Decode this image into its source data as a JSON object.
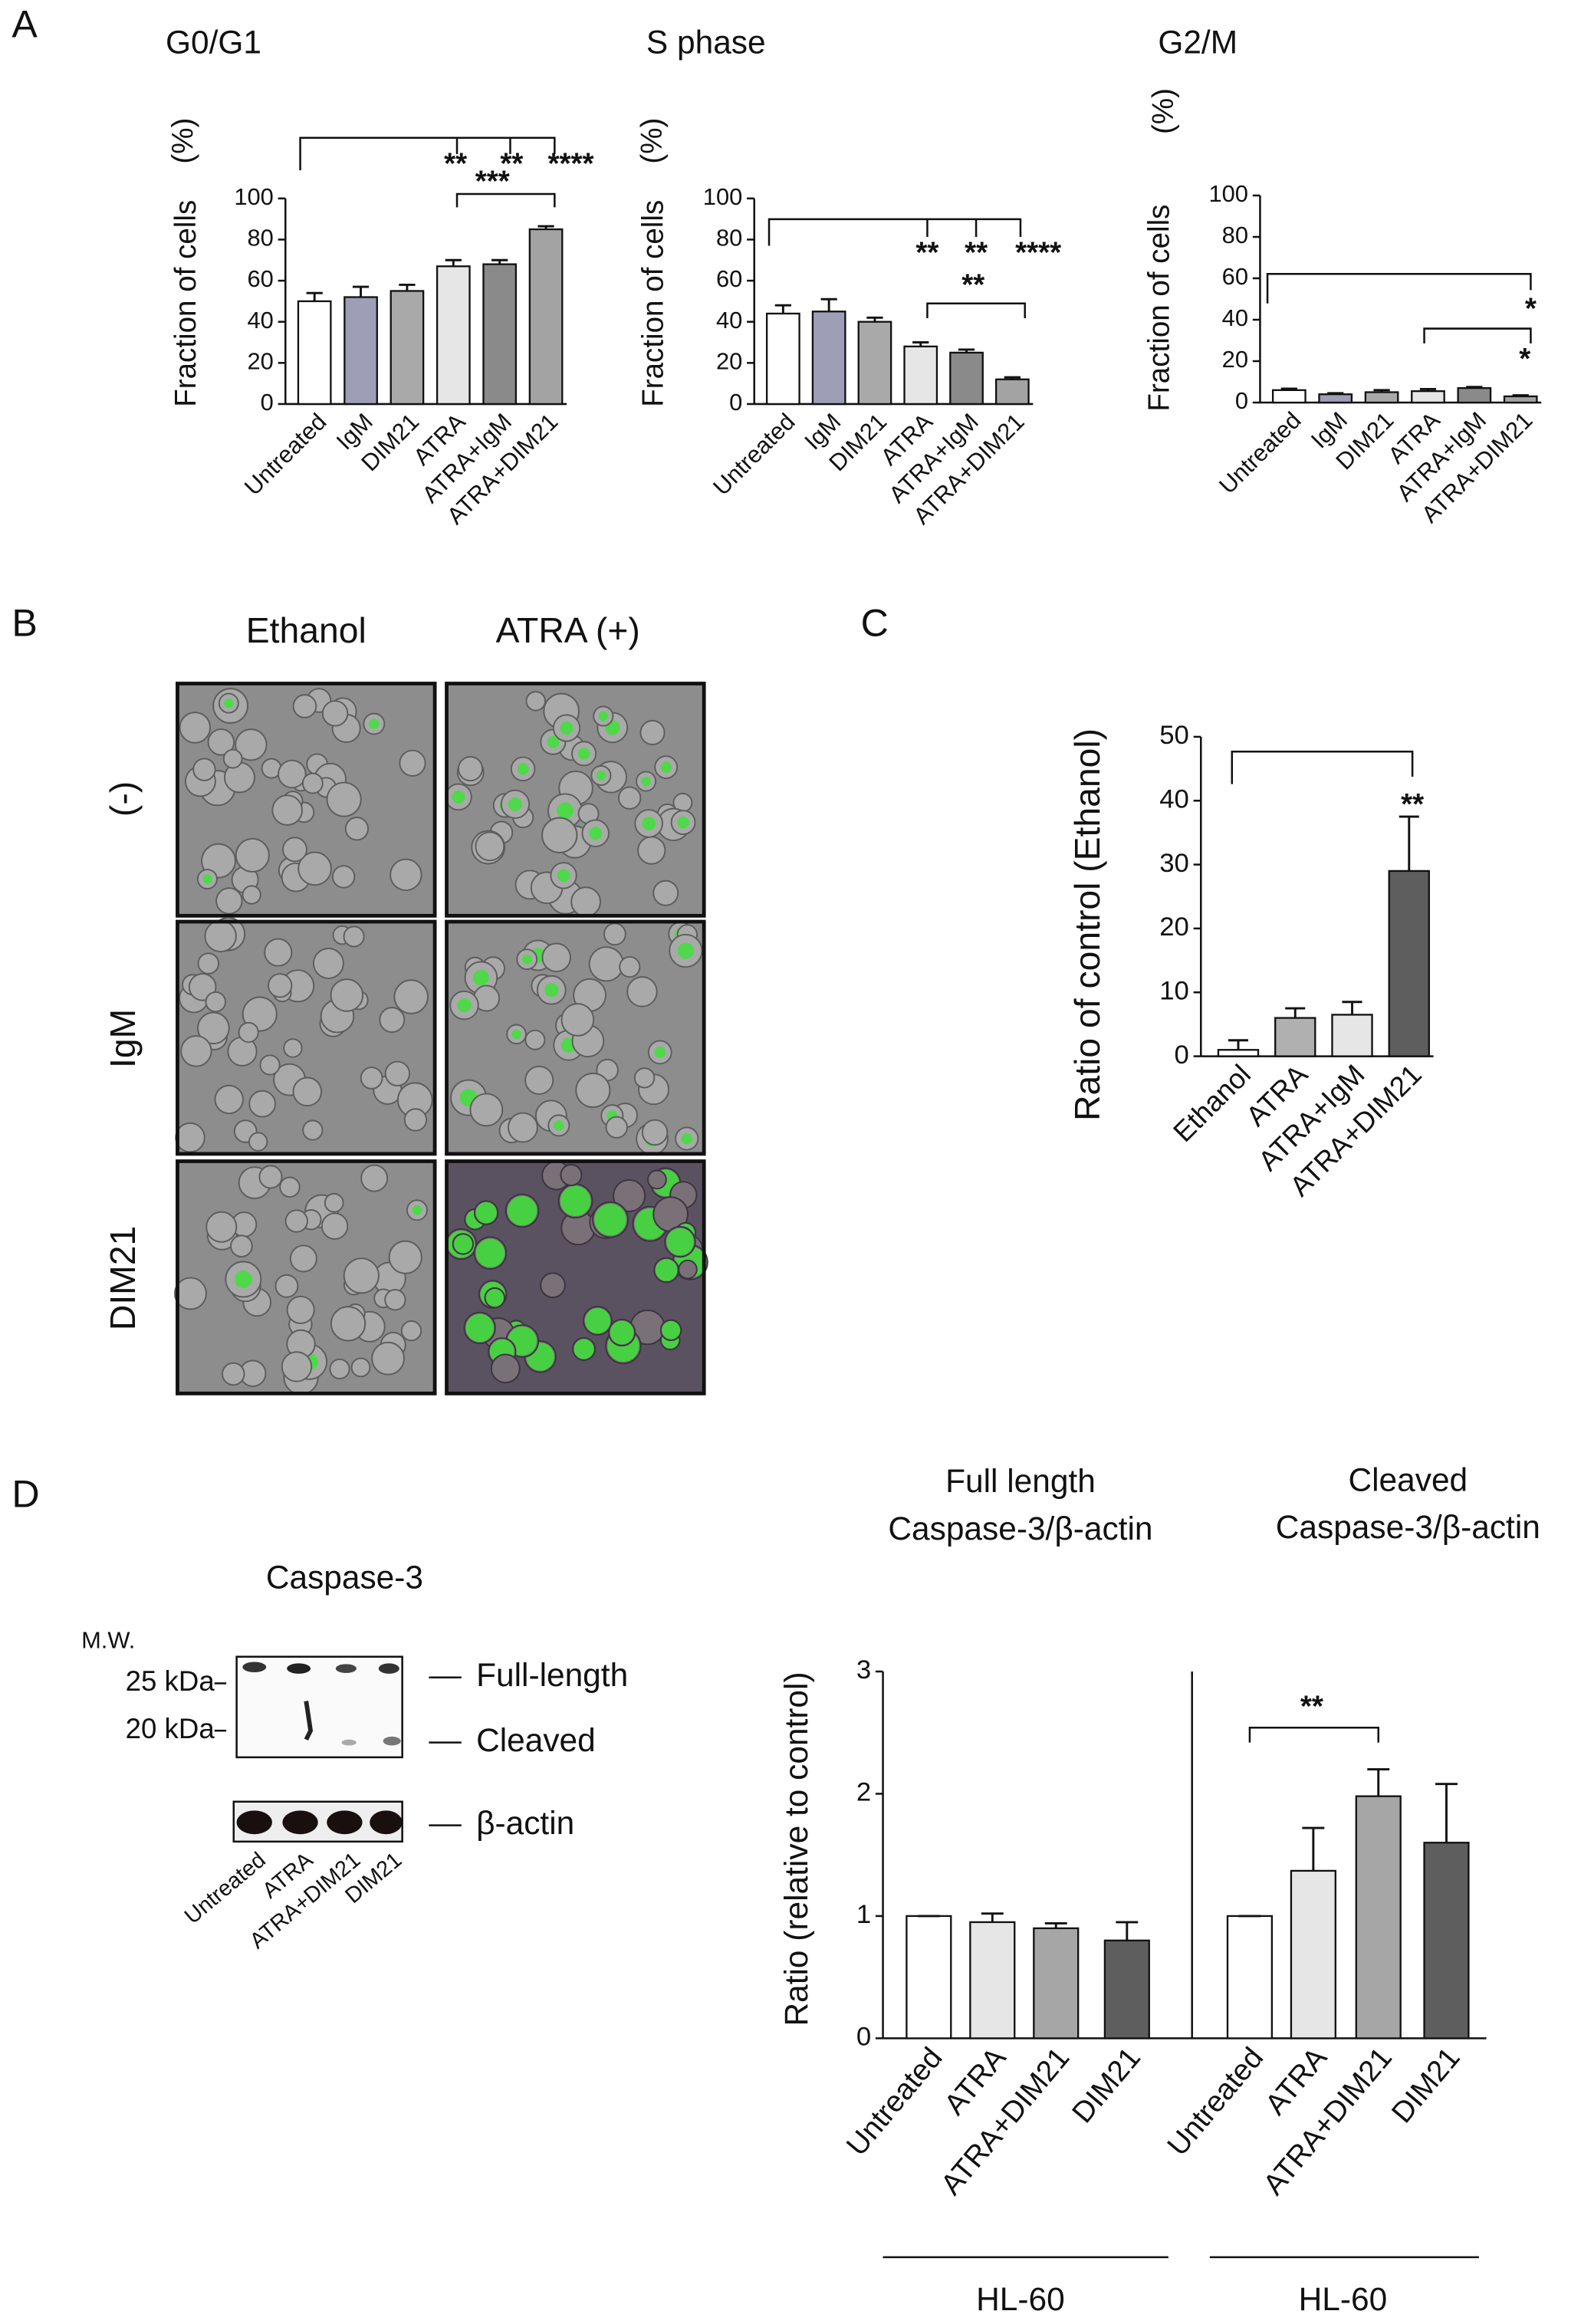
{
  "panel_labels": [
    "A",
    "B",
    "C",
    "D"
  ],
  "chart_data": [
    {
      "type": "bar",
      "title": "G0/G1",
      "y_unit": "(%)",
      "y_label": "Fraction of cells",
      "categories": [
        "Untreated",
        "IgM",
        "DIM21",
        "ATRA",
        "ATRA+IgM",
        "ATRA+DIM21"
      ],
      "values": [
        50,
        52,
        55,
        67,
        68,
        85
      ],
      "errors": [
        4,
        5,
        3,
        3,
        2,
        1.5
      ],
      "colors": [
        "#ffffff",
        "#9e9eb6",
        "#a9a9a9",
        "#e6e6e6",
        "#8a8a8a",
        "#a3a3a3"
      ],
      "ylim": [
        0,
        100
      ],
      "yticks": [
        0,
        20,
        40,
        60,
        80,
        100
      ],
      "annotations": [
        "**",
        "**",
        "****",
        "***"
      ]
    },
    {
      "type": "bar",
      "title": "S phase",
      "y_unit": "(%)",
      "y_label": "Fraction of cells",
      "categories": [
        "Untreated",
        "IgM",
        "DIM21",
        "ATRA",
        "ATRA+IgM",
        "ATRA+DIM21"
      ],
      "values": [
        44,
        45,
        40,
        28,
        25,
        12
      ],
      "errors": [
        4,
        6,
        2,
        2,
        1.5,
        1
      ],
      "colors": [
        "#ffffff",
        "#9e9eb6",
        "#a9a9a9",
        "#e6e6e6",
        "#8a8a8a",
        "#a3a3a3"
      ],
      "ylim": [
        0,
        100
      ],
      "yticks": [
        0,
        20,
        40,
        60,
        80,
        100
      ],
      "annotations": [
        "**",
        "**",
        "****",
        "**"
      ]
    },
    {
      "type": "bar",
      "title": "G2/M",
      "y_unit": "(%)",
      "y_label": "Fraction of cells",
      "categories": [
        "Untreated",
        "IgM",
        "DIM21",
        "ATRA",
        "ATRA+IgM",
        "ATRA+DIM21"
      ],
      "values": [
        6,
        4,
        5,
        5.5,
        7,
        3
      ],
      "errors": [
        0.7,
        0.5,
        1,
        1,
        0.5,
        0.5
      ],
      "colors": [
        "#ffffff",
        "#9e9eb6",
        "#a9a9a9",
        "#e6e6e6",
        "#8a8a8a",
        "#a3a3a3"
      ],
      "ylim": [
        0,
        100
      ],
      "yticks": [
        0,
        20,
        40,
        60,
        80,
        100
      ],
      "annotations": [
        "*",
        "*"
      ]
    },
    {
      "type": "bar",
      "y_label": "Ratio of control (Ethanol)",
      "categories": [
        "Ethanol",
        "ATRA",
        "ATRA+IgM",
        "ATRA+DIM21"
      ],
      "values": [
        1,
        6,
        6.5,
        29
      ],
      "errors": [
        1.5,
        1.5,
        2,
        8.5
      ],
      "colors": [
        "#ffffff",
        "#b0b0b0",
        "#e6e6e6",
        "#5e5e5e"
      ],
      "ylim": [
        0,
        50
      ],
      "yticks": [
        0,
        10,
        20,
        30,
        40,
        50
      ],
      "annotations": [
        "**"
      ]
    },
    {
      "type": "bar",
      "y_label": "Ratio  (relative to control)",
      "group_titles": [
        [
          "Full length",
          "Caspase-3/β-actin"
        ],
        [
          "Cleaved",
          "Caspase-3/β-actin"
        ]
      ],
      "group_labels": [
        "HL-60",
        "HL-60"
      ],
      "categories": [
        "Untreated",
        "ATRA",
        "ATRA+DIM21",
        "DIM21",
        "Untreated",
        "ATRA",
        "ATRA+DIM21",
        "DIM21"
      ],
      "values": [
        1,
        0.95,
        0.9,
        0.8,
        1,
        1.37,
        1.98,
        1.6
      ],
      "errors": [
        0,
        0.07,
        0.04,
        0.15,
        0,
        0.35,
        0.22,
        0.48
      ],
      "colors": [
        "#ffffff",
        "#e6e6e6",
        "#a6a6a6",
        "#5e5e5e",
        "#ffffff",
        "#e6e6e6",
        "#a6a6a6",
        "#5e5e5e"
      ],
      "ylim": [
        0,
        3
      ],
      "yticks": [
        0,
        1,
        2,
        3
      ],
      "annotations": [
        "**"
      ]
    }
  ],
  "micrographs": {
    "columns": [
      "Ethanol",
      "ATRA (+)"
    ],
    "rows": [
      "(-)",
      "IgM",
      "DIM21"
    ]
  },
  "western_blot": {
    "title": "Caspase-3",
    "mw_label": "M.W.",
    "markers": [
      "25 kDa",
      "20 kDa"
    ],
    "bands": [
      "Full-length",
      "Cleaved",
      "β-actin"
    ],
    "lanes": [
      "Untreated",
      "ATRA",
      "ATRA+DIM21",
      "DIM21"
    ]
  }
}
